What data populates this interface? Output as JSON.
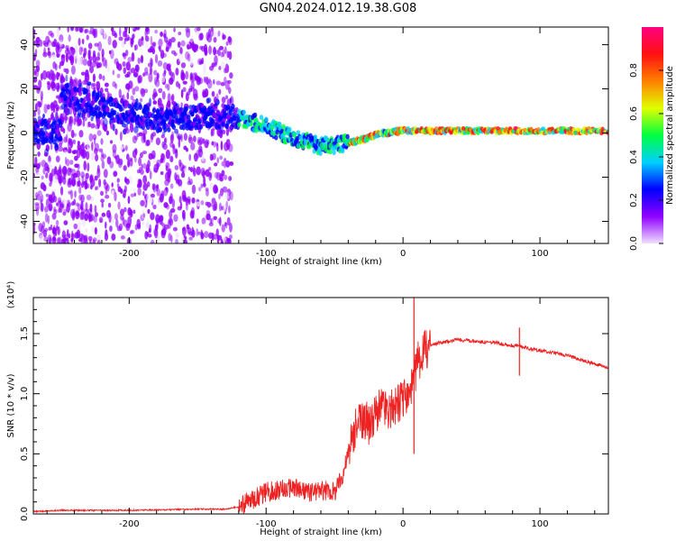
{
  "title": "GN04.2024.012.19.38.G08",
  "chart_data": [
    {
      "type": "heatmap",
      "xlabel": "Height of straight line (km)",
      "ylabel": "Frequency (Hz)",
      "xlim": [
        -270,
        150
      ],
      "ylim": [
        -50,
        48
      ],
      "xticks": [
        -200,
        -100,
        0,
        100
      ],
      "yticks": [
        -40,
        -20,
        0,
        20,
        40
      ],
      "ridge": [
        {
          "x": -250,
          "y": 18
        },
        {
          "x": -220,
          "y": 12
        },
        {
          "x": -180,
          "y": 6
        },
        {
          "x": -140,
          "y": 8
        },
        {
          "x": -120,
          "y": 7
        },
        {
          "x": -100,
          "y": 3
        },
        {
          "x": -80,
          "y": -2
        },
        {
          "x": -60,
          "y": -6
        },
        {
          "x": -45,
          "y": -5
        },
        {
          "x": -30,
          "y": -3
        },
        {
          "x": -15,
          "y": 0
        },
        {
          "x": 0,
          "y": 1
        },
        {
          "x": 40,
          "y": 1
        },
        {
          "x": 80,
          "y": 1
        },
        {
          "x": 120,
          "y": 1
        },
        {
          "x": 150,
          "y": 1
        }
      ],
      "colorbar": {
        "label": "Normalized spectral amplitude",
        "ticks": [
          0.0,
          0.2,
          0.4,
          0.6,
          0.8
        ],
        "range": [
          0,
          1
        ],
        "colors": [
          "#f0e0ff",
          "#9000ff",
          "#0000ff",
          "#00d0ff",
          "#00ff40",
          "#e0ff00",
          "#ff8000",
          "#ff1010",
          "#ff0080"
        ]
      }
    },
    {
      "type": "line",
      "xlabel": "Height of straight line (km)",
      "ylabel": "SNR (10 * v/v)",
      "multiplier": "(x10⁴)",
      "xlim": [
        -270,
        150
      ],
      "ylim": [
        0,
        1.8
      ],
      "xticks": [
        -200,
        -100,
        0,
        100
      ],
      "yticks": [
        0.0,
        0.5,
        1.0,
        1.5
      ],
      "color": "#ee2222",
      "x": [
        -270,
        -250,
        -200,
        -150,
        -130,
        -120,
        -110,
        -100,
        -90,
        -80,
        -70,
        -60,
        -50,
        -45,
        -40,
        -35,
        -30,
        -25,
        -20,
        -15,
        -10,
        -5,
        0,
        5,
        8,
        10,
        15,
        20,
        25,
        30,
        40,
        50,
        60,
        70,
        80,
        85,
        90,
        100,
        110,
        120,
        130,
        140,
        150
      ],
      "y": [
        0.02,
        0.03,
        0.03,
        0.04,
        0.04,
        0.06,
        0.12,
        0.18,
        0.2,
        0.22,
        0.18,
        0.2,
        0.18,
        0.3,
        0.5,
        0.7,
        0.8,
        0.75,
        0.85,
        0.9,
        0.85,
        0.9,
        0.95,
        1.0,
        1.1,
        1.25,
        1.35,
        1.4,
        1.42,
        1.43,
        1.45,
        1.44,
        1.43,
        1.42,
        1.4,
        1.4,
        1.38,
        1.36,
        1.34,
        1.32,
        1.28,
        1.25,
        1.22
      ]
    }
  ]
}
